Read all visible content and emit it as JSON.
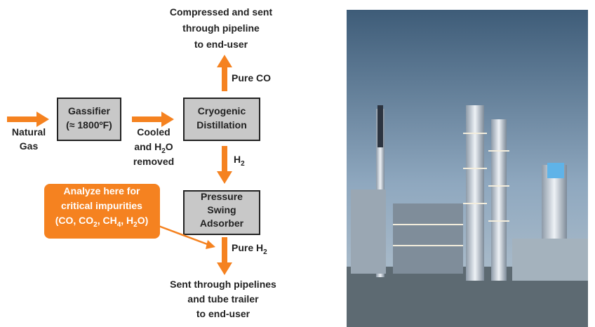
{
  "destination_top": [
    [
      "Compressed and sent"
    ],
    [
      "through pipeline"
    ],
    [
      "to end-user"
    ]
  ],
  "pure_co": [
    [
      "Pure CO"
    ]
  ],
  "natural_gas": [
    [
      "Natural"
    ],
    [
      "Gas"
    ]
  ],
  "gassifier": [
    [
      "Gassifier"
    ],
    [
      "(≈ 1800ºF)"
    ]
  ],
  "cooled": [
    [
      "Cooled"
    ],
    [
      "and H",
      "2",
      "O"
    ],
    [
      "removed"
    ]
  ],
  "cryogenic": [
    [
      "Cryogenic"
    ],
    [
      "Distillation"
    ]
  ],
  "h2": [
    [
      "H",
      "2"
    ]
  ],
  "psa": [
    [
      "Pressure"
    ],
    [
      "Swing"
    ],
    [
      "Adsorber"
    ]
  ],
  "callout": [
    [
      "Analyze here for"
    ],
    [
      "critical impurities"
    ],
    [
      "(CO, CO",
      "2",
      ", CH",
      "4",
      ", H",
      "2",
      "O)"
    ]
  ],
  "pure_h2": [
    [
      "Pure H",
      "2"
    ]
  ],
  "destination_bottom": [
    [
      "Sent through pipelines"
    ],
    [
      "and tube trailer"
    ],
    [
      "to end-user"
    ]
  ]
}
